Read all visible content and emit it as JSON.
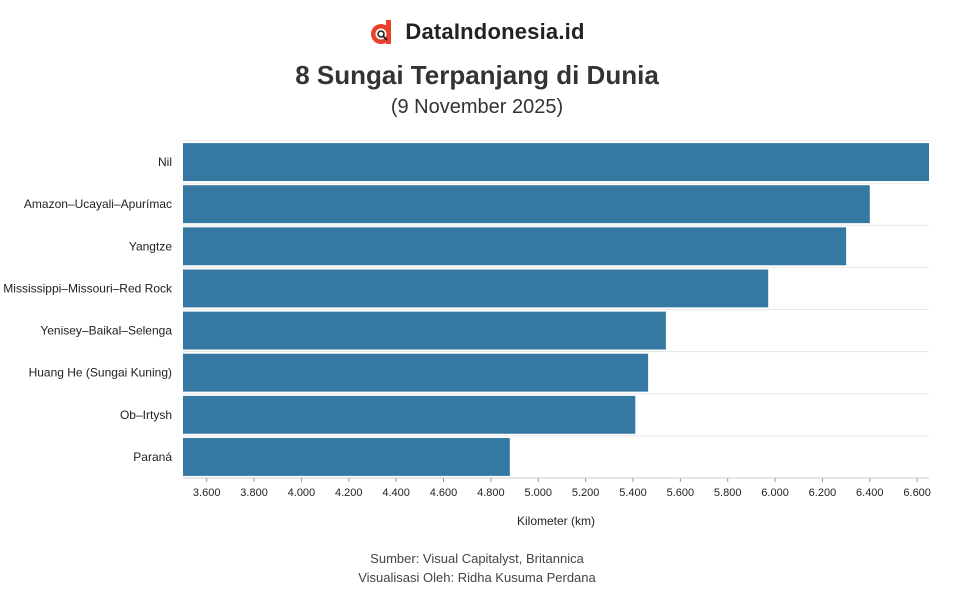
{
  "brand": {
    "name": "DataIndonesia.id",
    "logo_icon": "dataindonesia-logo-icon",
    "logo_color": "#e8412c"
  },
  "title": "8 Sungai Terpanjang di Dunia",
  "subtitle": "(9 November 2025)",
  "footer": {
    "source": "Sumber: Visual Capitalyst, Britannica",
    "visualized_by": "Visualisasi Oleh: Ridha Kusuma Perdana"
  },
  "chart_data": {
    "type": "bar",
    "orientation": "horizontal",
    "categories": [
      "Nil",
      "Amazon–Ucayali–Apurímac",
      "Yangtze",
      "Mississippi–Missouri–Red Rock",
      "Yenisey–Baikal–Selenga",
      "Huang He (Sungai Kuning)",
      "Ob–Irtysh",
      "Paraná"
    ],
    "values": [
      6650,
      6400,
      6300,
      5971,
      5539,
      5464,
      5410,
      4880
    ],
    "xlabel": "Kilometer (km)",
    "ylabel": "",
    "xlim": [
      3500,
      6650
    ],
    "xticks": [
      3600,
      3800,
      4000,
      4200,
      4400,
      4600,
      4800,
      5000,
      5200,
      5400,
      5600,
      5800,
      6000,
      6200,
      6400,
      6600
    ],
    "xtick_labels": [
      "3.600",
      "3.800",
      "4.000",
      "4.200",
      "4.400",
      "4.600",
      "4.800",
      "5.000",
      "5.200",
      "5.400",
      "5.600",
      "5.800",
      "6.000",
      "6.200",
      "6.400",
      "6.600"
    ],
    "grid": true,
    "bar_color": "#3579a3"
  }
}
